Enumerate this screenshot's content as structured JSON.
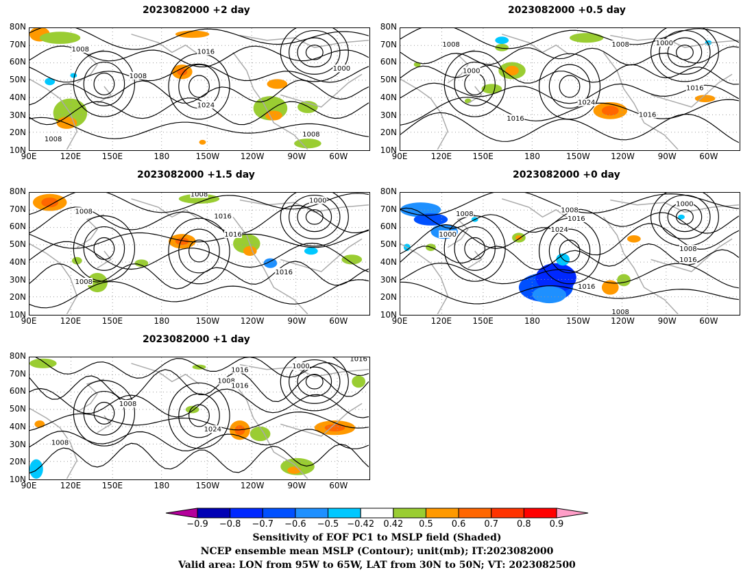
{
  "panels": [
    {
      "id": "p1",
      "title": "2023082000 +2 day"
    },
    {
      "id": "p2",
      "title": "2023082000 +0.5 day"
    },
    {
      "id": "p3",
      "title": "2023082000 +1.5 day"
    },
    {
      "id": "p4",
      "title": "2023082000 +0 day"
    },
    {
      "id": "p5",
      "title": "2023082000 +1 day"
    }
  ],
  "lat_ticks": [
    "80N",
    "70N",
    "60N",
    "50N",
    "40N",
    "30N",
    "20N",
    "10N"
  ],
  "lon_ticks": [
    "90E",
    "120E",
    "150E",
    "180",
    "150W",
    "120W",
    "90W",
    "60W"
  ],
  "contour_labels": {
    "p1": [
      "1008",
      "1016",
      "1008",
      "1024",
      "1000",
      "1008",
      "1008"
    ],
    "p2": [
      "1008",
      "1000",
      "1024",
      "1016",
      "1008",
      "1000",
      "1016",
      "1016"
    ],
    "p3": [
      "1008",
      "1016",
      "1016",
      "1000",
      "1008",
      "1016",
      "1008"
    ],
    "p4": [
      "1008",
      "1000",
      "1008",
      "1016",
      "1024",
      "1000",
      "1008",
      "1016",
      "1016",
      "1008"
    ],
    "p5": [
      "1016",
      "1008",
      "1016",
      "1000",
      "1008",
      "1024",
      "1008",
      "1016"
    ]
  },
  "colorbar": {
    "labels": [
      "−0.9",
      "−0.8",
      "−0.7",
      "−0.6",
      "−0.5",
      "−0.42",
      "0.42",
      "0.5",
      "0.6",
      "0.7",
      "0.8",
      "0.9"
    ],
    "colors": [
      "#0000b4",
      "#0028ff",
      "#0050ff",
      "#1e90ff",
      "#00c8ff",
      "#ffffff",
      "#9acd32",
      "#ff9900",
      "#ff6600",
      "#ff3300",
      "#ff0000"
    ],
    "low_arrow_color": "#b4009b",
    "high_arrow_color": "#ff9ec8"
  },
  "caption": {
    "line1": "Sensitivity of EOF PC1 to MSLP field (Shaded)",
    "line2": "NCEP ensemble mean MSLP (Contour); unit(mb); IT:2023082000",
    "line3": "Valid area: LON from 95W to 65W, LAT from 30N to 50N; VT: 2023082500"
  }
}
